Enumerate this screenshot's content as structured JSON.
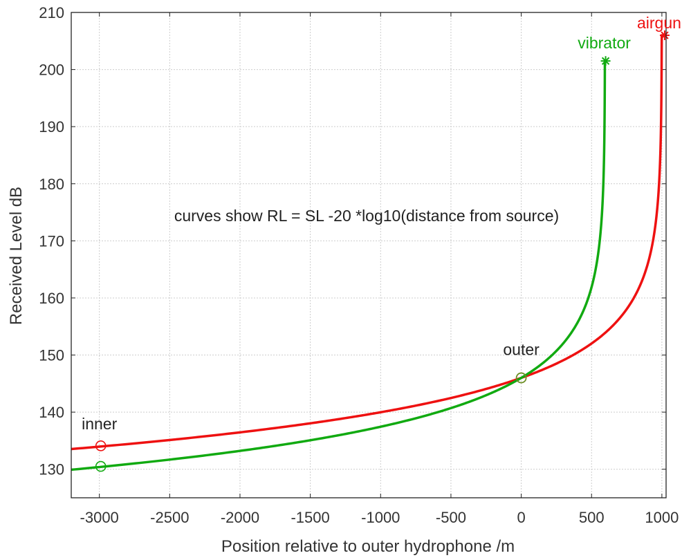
{
  "chart_data": {
    "type": "line",
    "xlabel": "Position relative to outer hydrophone /m",
    "ylabel": "Received Level dB",
    "xlim": [
      -3200,
      1030
    ],
    "ylim": [
      125,
      210
    ],
    "xticks": [
      -3000,
      -2500,
      -2000,
      -1500,
      -1000,
      -500,
      0,
      500,
      1000
    ],
    "yticks": [
      130,
      140,
      150,
      160,
      170,
      180,
      190,
      200,
      210
    ],
    "grid": true,
    "annotation_text": "curves show RL = SL -20 *log10(distance from source)",
    "series": [
      {
        "name": "airgun",
        "color": "#ee1111",
        "formula": "RL = SL - 20*log10(distance from source)",
        "source_level": 206,
        "source_position": 1020,
        "points": [
          [
            -3200,
            133.7
          ],
          [
            -3000,
            134.0
          ],
          [
            -2500,
            134.9
          ],
          [
            -2000,
            136.0
          ],
          [
            -1500,
            137.3
          ],
          [
            -1000,
            139.0
          ],
          [
            -500,
            141.5
          ],
          [
            0,
            146.0
          ],
          [
            300,
            149.5
          ],
          [
            500,
            152.3
          ],
          [
            700,
            157.2
          ],
          [
            850,
            161.9
          ],
          [
            950,
            167.1
          ],
          [
            1000,
            180.0
          ],
          [
            1020,
            206.0
          ]
        ],
        "markers": [
          {
            "x": 1020,
            "y": 206,
            "shape": "star"
          },
          {
            "x": -2990,
            "y": 134.1,
            "shape": "circle"
          }
        ]
      },
      {
        "name": "vibrator",
        "color": "#11aa11",
        "formula": "RL = SL - 20*log10(distance from source)",
        "source_level": 201.5,
        "source_position": 600,
        "points": [
          [
            -3200,
            130.0
          ],
          [
            -3000,
            130.5
          ],
          [
            -2500,
            131.7
          ],
          [
            -2000,
            133.1
          ],
          [
            -1500,
            135.0
          ],
          [
            -1000,
            137.4
          ],
          [
            -500,
            140.9
          ],
          [
            0,
            146.0
          ],
          [
            200,
            149.5
          ],
          [
            350,
            153.2
          ],
          [
            450,
            157.4
          ],
          [
            520,
            162.1
          ],
          [
            570,
            169.4
          ],
          [
            600,
            201.5
          ]
        ],
        "markers": [
          {
            "x": 600,
            "y": 201.5,
            "shape": "star"
          },
          {
            "x": -2990,
            "y": 130.5,
            "shape": "circle"
          }
        ]
      }
    ],
    "point_labels": [
      {
        "text": "inner",
        "x": -3000,
        "y": 137
      },
      {
        "text": "outer",
        "x": 0,
        "y": 150
      }
    ],
    "reference_markers": [
      {
        "name": "outer",
        "x": 0,
        "y": 146,
        "color": "#6b8e23"
      }
    ]
  }
}
